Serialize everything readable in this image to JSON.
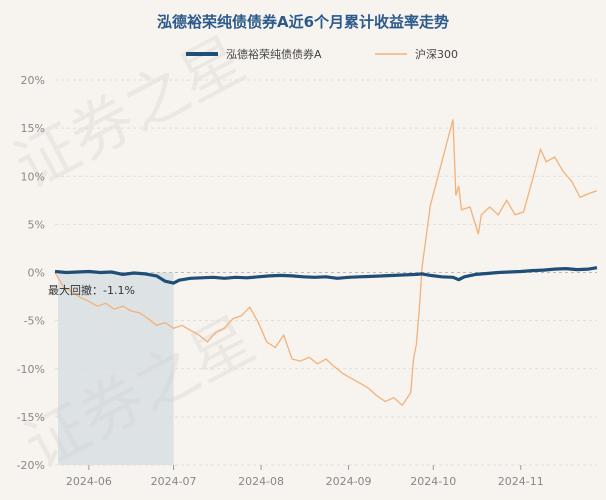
{
  "chart_data": {
    "type": "line",
    "title": "泓德裕荣纯债债券A近6个月累计收益率走势",
    "xlabel": "",
    "ylabel": "",
    "ylim": [
      -20,
      20
    ],
    "y_ticks": [
      "20%",
      "15%",
      "10%",
      "5%",
      "0%",
      "-5%",
      "-10%",
      "-15%",
      "-20%"
    ],
    "y_tick_values": [
      20,
      15,
      10,
      5,
      0,
      -5,
      -10,
      -15,
      -20
    ],
    "x_range": [
      "2024-05-20",
      "2024-11-28"
    ],
    "x_ticks": [
      "2024-06",
      "2024-07",
      "2024-08",
      "2024-09",
      "2024-10",
      "2024-11"
    ],
    "x_tick_dates": [
      "2024-06-01",
      "2024-07-01",
      "2024-08-01",
      "2024-09-01",
      "2024-10-01",
      "2024-11-01"
    ],
    "grid": true,
    "legend": "top-center",
    "series": [
      {
        "name": "泓德裕荣纯债债券A",
        "color": "#1f4e79",
        "points": [
          [
            "2024-05-20",
            0.1
          ],
          [
            "2024-05-24",
            0.0
          ],
          [
            "2024-05-28",
            0.05
          ],
          [
            "2024-06-01",
            0.1
          ],
          [
            "2024-06-05",
            0.0
          ],
          [
            "2024-06-09",
            0.05
          ],
          [
            "2024-06-13",
            -0.2
          ],
          [
            "2024-06-17",
            -0.05
          ],
          [
            "2024-06-21",
            -0.15
          ],
          [
            "2024-06-25",
            -0.35
          ],
          [
            "2024-06-28",
            -0.9
          ],
          [
            "2024-07-01",
            -1.1
          ],
          [
            "2024-07-03",
            -0.8
          ],
          [
            "2024-07-07",
            -0.6
          ],
          [
            "2024-07-11",
            -0.55
          ],
          [
            "2024-07-15",
            -0.5
          ],
          [
            "2024-07-19",
            -0.6
          ],
          [
            "2024-07-23",
            -0.5
          ],
          [
            "2024-07-27",
            -0.55
          ],
          [
            "2024-07-31",
            -0.45
          ],
          [
            "2024-08-04",
            -0.35
          ],
          [
            "2024-08-08",
            -0.3
          ],
          [
            "2024-08-12",
            -0.35
          ],
          [
            "2024-08-16",
            -0.45
          ],
          [
            "2024-08-20",
            -0.5
          ],
          [
            "2024-08-24",
            -0.45
          ],
          [
            "2024-08-28",
            -0.6
          ],
          [
            "2024-09-01",
            -0.5
          ],
          [
            "2024-09-05",
            -0.45
          ],
          [
            "2024-09-09",
            -0.4
          ],
          [
            "2024-09-13",
            -0.35
          ],
          [
            "2024-09-17",
            -0.3
          ],
          [
            "2024-09-21",
            -0.25
          ],
          [
            "2024-09-25",
            -0.2
          ],
          [
            "2024-09-27",
            -0.15
          ],
          [
            "2024-09-30",
            -0.3
          ],
          [
            "2024-10-04",
            -0.45
          ],
          [
            "2024-10-08",
            -0.5
          ],
          [
            "2024-10-10",
            -0.75
          ],
          [
            "2024-10-12",
            -0.45
          ],
          [
            "2024-10-16",
            -0.2
          ],
          [
            "2024-10-20",
            -0.1
          ],
          [
            "2024-10-24",
            0.0
          ],
          [
            "2024-10-28",
            0.05
          ],
          [
            "2024-11-01",
            0.1
          ],
          [
            "2024-11-05",
            0.2
          ],
          [
            "2024-11-09",
            0.25
          ],
          [
            "2024-11-13",
            0.35
          ],
          [
            "2024-11-17",
            0.4
          ],
          [
            "2024-11-21",
            0.3
          ],
          [
            "2024-11-25",
            0.35
          ],
          [
            "2024-11-28",
            0.5
          ]
        ]
      },
      {
        "name": "沪深300",
        "color": "#f2b27a",
        "points": [
          [
            "2024-05-20",
            0.0
          ],
          [
            "2024-05-23",
            -1.5
          ],
          [
            "2024-05-26",
            -2.0
          ],
          [
            "2024-05-29",
            -2.6
          ],
          [
            "2024-06-01",
            -3.0
          ],
          [
            "2024-06-04",
            -3.5
          ],
          [
            "2024-06-07",
            -3.2
          ],
          [
            "2024-06-10",
            -3.8
          ],
          [
            "2024-06-13",
            -3.5
          ],
          [
            "2024-06-16",
            -4.0
          ],
          [
            "2024-06-19",
            -4.2
          ],
          [
            "2024-06-22",
            -4.8
          ],
          [
            "2024-06-25",
            -5.5
          ],
          [
            "2024-06-28",
            -5.2
          ],
          [
            "2024-07-01",
            -5.8
          ],
          [
            "2024-07-04",
            -5.5
          ],
          [
            "2024-07-07",
            -6.0
          ],
          [
            "2024-07-10",
            -6.5
          ],
          [
            "2024-07-13",
            -7.2
          ],
          [
            "2024-07-16",
            -6.2
          ],
          [
            "2024-07-19",
            -5.8
          ],
          [
            "2024-07-22",
            -4.8
          ],
          [
            "2024-07-25",
            -4.5
          ],
          [
            "2024-07-28",
            -3.6
          ],
          [
            "2024-07-31",
            -5.2
          ],
          [
            "2024-08-03",
            -7.2
          ],
          [
            "2024-08-06",
            -7.8
          ],
          [
            "2024-08-09",
            -6.5
          ],
          [
            "2024-08-12",
            -9.0
          ],
          [
            "2024-08-15",
            -9.2
          ],
          [
            "2024-08-18",
            -8.8
          ],
          [
            "2024-08-21",
            -9.5
          ],
          [
            "2024-08-24",
            -9.0
          ],
          [
            "2024-08-27",
            -9.8
          ],
          [
            "2024-08-30",
            -10.5
          ],
          [
            "2024-09-02",
            -11.0
          ],
          [
            "2024-09-05",
            -11.5
          ],
          [
            "2024-09-08",
            -12.0
          ],
          [
            "2024-09-11",
            -12.8
          ],
          [
            "2024-09-14",
            -13.4
          ],
          [
            "2024-09-17",
            -13.0
          ],
          [
            "2024-09-20",
            -13.8
          ],
          [
            "2024-09-23",
            -12.5
          ],
          [
            "2024-09-24",
            -9.0
          ],
          [
            "2024-09-25",
            -7.5
          ],
          [
            "2024-09-26",
            -4.0
          ],
          [
            "2024-09-27",
            0.5
          ],
          [
            "2024-09-30",
            7.0
          ],
          [
            "2024-10-08",
            15.9
          ],
          [
            "2024-10-09",
            8.0
          ],
          [
            "2024-10-10",
            9.0
          ],
          [
            "2024-10-11",
            6.5
          ],
          [
            "2024-10-14",
            6.8
          ],
          [
            "2024-10-17",
            4.0
          ],
          [
            "2024-10-18",
            6.0
          ],
          [
            "2024-10-21",
            6.8
          ],
          [
            "2024-10-24",
            6.0
          ],
          [
            "2024-10-27",
            7.5
          ],
          [
            "2024-10-30",
            6.0
          ],
          [
            "2024-11-02",
            6.3
          ],
          [
            "2024-11-05",
            9.5
          ],
          [
            "2024-11-08",
            12.8
          ],
          [
            "2024-11-10",
            11.5
          ],
          [
            "2024-11-13",
            12.0
          ],
          [
            "2024-11-16",
            10.5
          ],
          [
            "2024-11-19",
            9.5
          ],
          [
            "2024-11-22",
            7.8
          ],
          [
            "2024-11-25",
            8.2
          ],
          [
            "2024-11-28",
            8.5
          ]
        ]
      }
    ],
    "max_drawdown": {
      "label": "最大回撤：-1.1%",
      "value": -1.1,
      "start": "2024-05-20",
      "end": "2024-07-01"
    }
  },
  "watermark": [
    "证券之星",
    "证券之星"
  ]
}
